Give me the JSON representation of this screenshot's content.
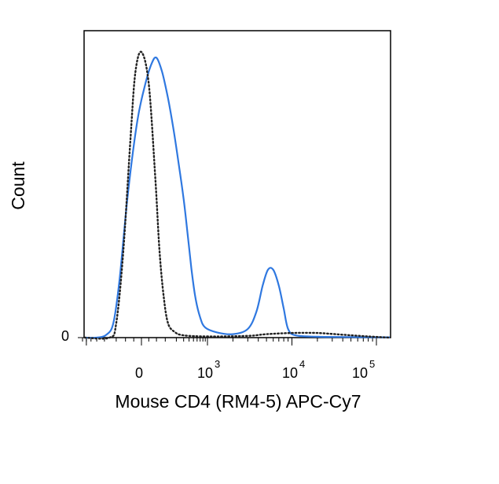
{
  "chart_data": {
    "type": "line",
    "title": "",
    "xlabel": "Mouse CD4 (RM4-5) APC-Cy7",
    "ylabel": "Count",
    "x_scale": "biexponential",
    "x_tick_labels": [
      {
        "base": "0",
        "exp": ""
      },
      {
        "base": "10",
        "exp": "3"
      },
      {
        "base": "10",
        "exp": "4"
      },
      {
        "base": "10",
        "exp": "5"
      }
    ],
    "y_tick_labels": [
      "0"
    ],
    "grid": false,
    "legend": "none",
    "series": [
      {
        "style": "solid",
        "color": "#2f78e0",
        "points": [
          [
            -600,
            0
          ],
          [
            -300,
            0
          ],
          [
            -180,
            0.01
          ],
          [
            -120,
            0.05
          ],
          [
            -80,
            0.2
          ],
          [
            -40,
            0.5
          ],
          [
            -10,
            0.75
          ],
          [
            10,
            0.88
          ],
          [
            30,
            0.95
          ],
          [
            50,
            0.97
          ],
          [
            80,
            0.92
          ],
          [
            120,
            0.83
          ],
          [
            170,
            0.72
          ],
          [
            230,
            0.6
          ],
          [
            300,
            0.48
          ],
          [
            370,
            0.36
          ],
          [
            450,
            0.24
          ],
          [
            550,
            0.14
          ],
          [
            700,
            0.07
          ],
          [
            900,
            0.035
          ],
          [
            1300,
            0.018
          ],
          [
            2000,
            0.012
          ],
          [
            3000,
            0.03
          ],
          [
            3800,
            0.09
          ],
          [
            4500,
            0.18
          ],
          [
            5200,
            0.235
          ],
          [
            6000,
            0.235
          ],
          [
            7000,
            0.18
          ],
          [
            8000,
            0.1
          ],
          [
            9000,
            0.03
          ],
          [
            11000,
            0.008
          ],
          [
            20000,
            0.003
          ],
          [
            50000,
            0.002
          ],
          [
            150000,
            0.001
          ]
        ]
      },
      {
        "style": "dotted",
        "color": "#222222",
        "points": [
          [
            -600,
            0
          ],
          [
            -150,
            0
          ],
          [
            -100,
            0.05
          ],
          [
            -60,
            0.3
          ],
          [
            -30,
            0.7
          ],
          [
            -15,
            0.92
          ],
          [
            0,
            0.99
          ],
          [
            20,
            0.88
          ],
          [
            45,
            0.55
          ],
          [
            65,
            0.3
          ],
          [
            90,
            0.14
          ],
          [
            120,
            0.05
          ],
          [
            180,
            0.02
          ],
          [
            300,
            0.008
          ],
          [
            1000,
            0.004
          ],
          [
            3000,
            0.006
          ],
          [
            5000,
            0.012
          ],
          [
            10000,
            0.016
          ],
          [
            20000,
            0.016
          ],
          [
            40000,
            0.01
          ],
          [
            80000,
            0.004
          ],
          [
            150000,
            0
          ]
        ]
      }
    ]
  }
}
